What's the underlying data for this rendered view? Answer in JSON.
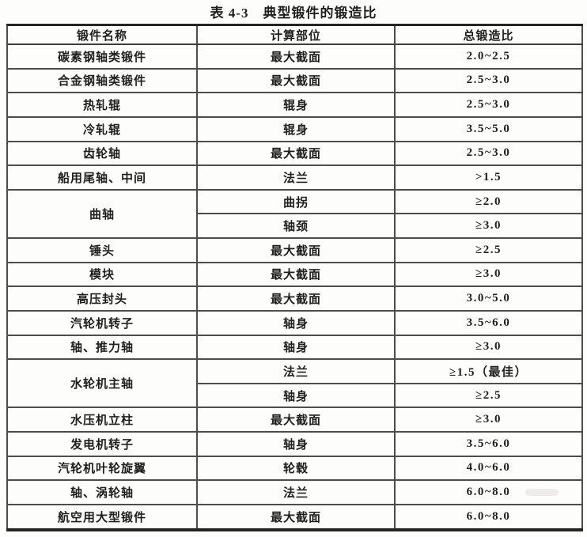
{
  "page": {
    "title": "表 4-3　典型锻件的锻造比"
  },
  "table": {
    "headers": [
      "锻件名称",
      "计算部位",
      "总锻造比"
    ],
    "rows": [
      {
        "cells": [
          {
            "text": "碳素钢轴类锻件"
          },
          {
            "text": "最大截面"
          },
          {
            "text": "2.0~2.5"
          }
        ]
      },
      {
        "cells": [
          {
            "text": "合金钢轴类锻件"
          },
          {
            "text": "最大截面"
          },
          {
            "text": "2.5~3.0"
          }
        ]
      },
      {
        "cells": [
          {
            "text": "热轧辊"
          },
          {
            "text": "辊身"
          },
          {
            "text": "2.5~3.0"
          }
        ]
      },
      {
        "cells": [
          {
            "text": "冷轧辊"
          },
          {
            "text": "辊身"
          },
          {
            "text": "3.5~5.0"
          }
        ]
      },
      {
        "cells": [
          {
            "text": "齿轮轴"
          },
          {
            "text": "最大截面"
          },
          {
            "text": "2.5~3.0"
          }
        ]
      },
      {
        "cells": [
          {
            "text": "船用尾轴、中间"
          },
          {
            "text": "法兰"
          },
          {
            "text": ">1.5"
          }
        ]
      },
      {
        "cells": [
          {
            "text": "曲轴",
            "rowspan": 2
          },
          {
            "text": "曲拐"
          },
          {
            "text": "≥2.0"
          }
        ]
      },
      {
        "cells": [
          {
            "text": "轴颈"
          },
          {
            "text": "≥3.0"
          }
        ]
      },
      {
        "cells": [
          {
            "text": "锤头"
          },
          {
            "text": "最大截面"
          },
          {
            "text": "≥2.5"
          }
        ]
      },
      {
        "cells": [
          {
            "text": "模块"
          },
          {
            "text": "最大截面"
          },
          {
            "text": "≥3.0"
          }
        ]
      },
      {
        "cells": [
          {
            "text": "高压封头"
          },
          {
            "text": "最大截面"
          },
          {
            "text": "3.0~5.0"
          }
        ]
      },
      {
        "cells": [
          {
            "text": "汽轮机转子"
          },
          {
            "text": "轴身"
          },
          {
            "text": "3.5~6.0"
          }
        ]
      },
      {
        "cells": [
          {
            "text": "轴、推力轴"
          },
          {
            "text": "轴身"
          },
          {
            "text": "≥3.0"
          }
        ]
      },
      {
        "cells": [
          {
            "text": "水轮机主轴",
            "rowspan": 2
          },
          {
            "text": "法兰"
          },
          {
            "text": "≥1.5（最佳）"
          }
        ]
      },
      {
        "cells": [
          {
            "text": "轴身"
          },
          {
            "text": "≥2.5"
          }
        ]
      },
      {
        "cells": [
          {
            "text": "水压机立柱"
          },
          {
            "text": "最大截面"
          },
          {
            "text": "≥3.0"
          }
        ]
      },
      {
        "cells": [
          {
            "text": "发电机转子"
          },
          {
            "text": "轴身"
          },
          {
            "text": "3.5~6.0"
          }
        ]
      },
      {
        "cells": [
          {
            "text": "汽轮机叶轮旋翼"
          },
          {
            "text": "轮毂"
          },
          {
            "text": "4.0~6.0"
          }
        ]
      },
      {
        "cells": [
          {
            "text": "轴、涡轮轴"
          },
          {
            "text": "法兰"
          },
          {
            "text": "6.0~8.0"
          }
        ]
      },
      {
        "cells": [
          {
            "text": "航空用大型锻件"
          },
          {
            "text": "最大截面"
          },
          {
            "text": "6.0~8.0"
          }
        ]
      }
    ]
  },
  "colors": {
    "ink": "#1f1f1f",
    "grid_line": "#4d4d4d",
    "outer_border": "#242424",
    "paper": "#fdfdfc"
  }
}
